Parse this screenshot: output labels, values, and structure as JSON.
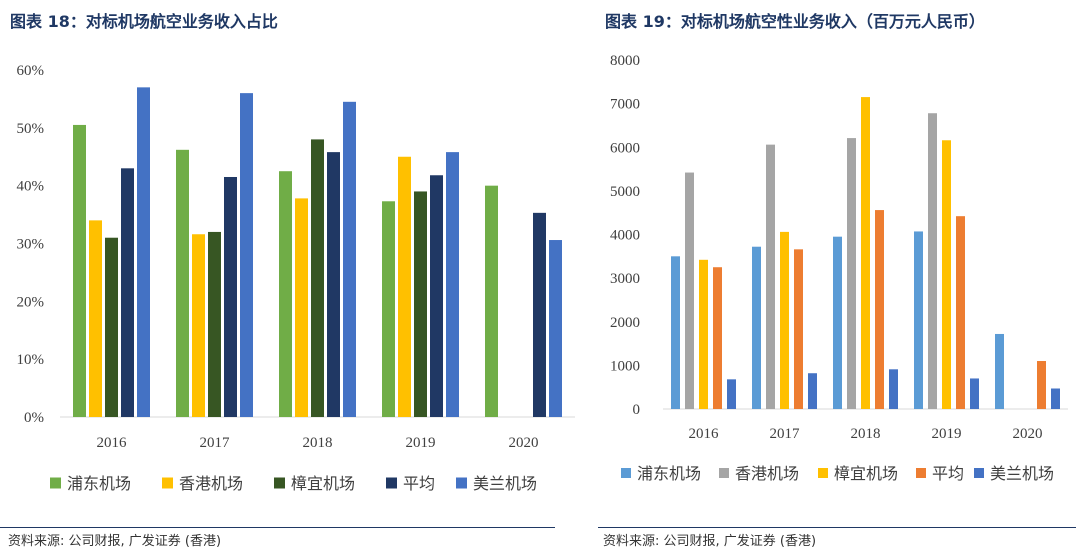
{
  "charts": [
    {
      "fig_title": "图表 18：对标机场航空业务收入占比",
      "source": "资料来源: 公司财报, 广发证券 (香港)",
      "chart_data": {
        "type": "bar",
        "title": "对标机场航空业务收入占比",
        "categories": [
          "2016",
          "2017",
          "2018",
          "2019",
          "2020"
        ],
        "ylim": [
          0,
          60
        ],
        "yticks": [
          0,
          10,
          20,
          30,
          40,
          50,
          60
        ],
        "ytick_labels": [
          "0%",
          "10%",
          "20%",
          "30%",
          "40%",
          "50%",
          "60%"
        ],
        "series": [
          {
            "name": "浦东机场",
            "color": "#70ad47",
            "values": [
              50.5,
              46.2,
              42.5,
              37.3,
              40.0
            ]
          },
          {
            "name": "香港机场",
            "color": "#ffc000",
            "values": [
              34.0,
              31.6,
              37.8,
              45.0,
              null
            ]
          },
          {
            "name": "樟宜机场",
            "color": "#375623",
            "values": [
              31.0,
              32.0,
              48.0,
              39.0,
              null
            ]
          },
          {
            "name": "平均",
            "color": "#203864",
            "values": [
              43.0,
              41.5,
              45.8,
              41.8,
              35.3
            ]
          },
          {
            "name": "美兰机场",
            "color": "#4472c4",
            "values": [
              57.0,
              56.0,
              54.5,
              45.8,
              30.6
            ]
          }
        ],
        "legend_position": "bottom"
      }
    },
    {
      "fig_title": "图表 19：对标机场航空性业务收入（百万元人民币）",
      "source": "资料来源: 公司财报, 广发证券 (香港)",
      "chart_data": {
        "type": "bar",
        "title": "对标机场航空性业务收入（百万元人民币）",
        "categories": [
          "2016",
          "2017",
          "2018",
          "2019",
          "2020"
        ],
        "ylim": [
          0,
          8000
        ],
        "yticks": [
          0,
          1000,
          2000,
          3000,
          4000,
          5000,
          6000,
          7000,
          8000
        ],
        "ytick_labels": [
          "0",
          "1000",
          "2000",
          "3000",
          "4000",
          "5000",
          "6000",
          "7000",
          "8000"
        ],
        "series": [
          {
            "name": "浦东机场",
            "color": "#5b9bd5",
            "values": [
              3500,
              3720,
              3950,
              4070,
              1720
            ]
          },
          {
            "name": "香港机场",
            "color": "#a5a5a5",
            "values": [
              5420,
              6060,
              6210,
              6780,
              null
            ]
          },
          {
            "name": "樟宜机场",
            "color": "#ffc000",
            "values": [
              3420,
              4060,
              7150,
              6160,
              null
            ]
          },
          {
            "name": "平均",
            "color": "#ed7d31",
            "values": [
              3250,
              3660,
              4560,
              4420,
              1100
            ]
          },
          {
            "name": "美兰机场",
            "color": "#4472c4",
            "values": [
              680,
              820,
              910,
              700,
              470
            ]
          }
        ],
        "legend_position": "bottom"
      }
    }
  ]
}
